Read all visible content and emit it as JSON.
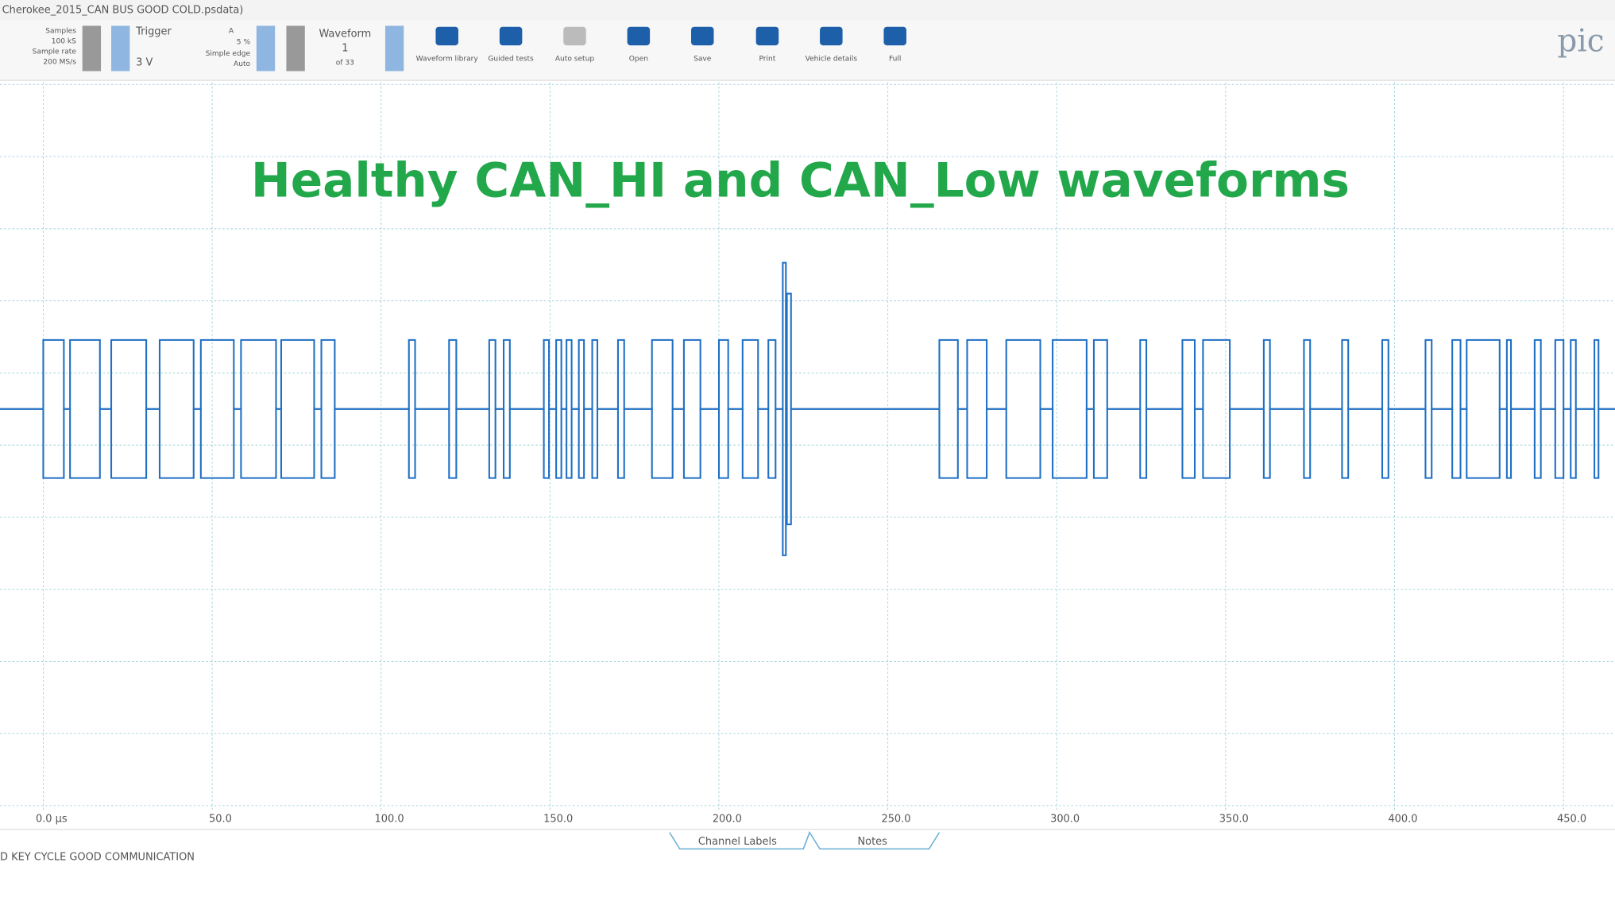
{
  "window": {
    "title": "Cherokee_2015_CAN BUS GOOD COLD.psdata)",
    "logo": "pic"
  },
  "toolbar": {
    "samples_label": "Samples",
    "samples": "100 kS",
    "rate_label": "Sample rate",
    "rate": "200 MS/s",
    "trigger_label": "Trigger",
    "trigger_level": "3 V",
    "trigger_channel": "A",
    "trigger_pre": "5 %",
    "trigger_type": "Simple edge",
    "trigger_mode": "Auto",
    "waveform_label": "Waveform",
    "waveform_index": "1",
    "waveform_count": "of 33",
    "buttons": [
      "Waveform library",
      "Guided tests",
      "Auto setup",
      "Open",
      "Save",
      "Print",
      "Vehicle details",
      "Full"
    ]
  },
  "annotation": "Healthy CAN_HI and CAN_Low waveforms",
  "x_axis": {
    "ticks": [
      "0.0 µs",
      "50.0",
      "100.0",
      "150.0",
      "200.0",
      "250.0",
      "300.0",
      "350.0",
      "400.0",
      "450.0"
    ]
  },
  "tabs": [
    "Channel Labels",
    "Notes"
  ],
  "status": "D KEY CYCLE GOOD COMMUNICATION"
}
